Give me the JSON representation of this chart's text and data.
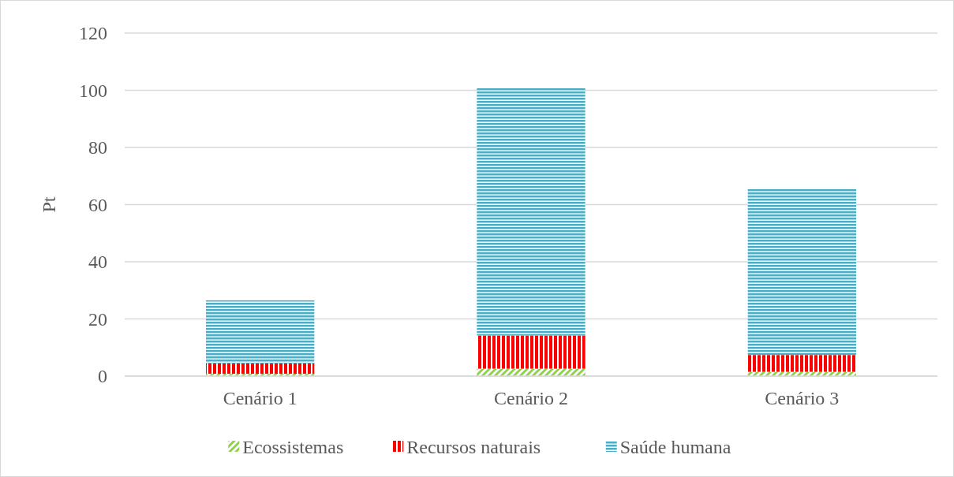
{
  "chart_data": {
    "type": "bar",
    "stacked": true,
    "ylabel": "Pt",
    "categories": [
      "Cenário 1",
      "Cenário 2",
      "Cenário 3"
    ],
    "series": [
      {
        "name": "Ecossistemas",
        "color": "#92d050",
        "values": [
          0.8,
          2.6,
          1.5
        ]
      },
      {
        "name": "Recursos naturais",
        "color": "#ff0000",
        "values": [
          3.7,
          11.6,
          5.9
        ]
      },
      {
        "name": "Saúde humana",
        "color": "#4bacc6",
        "values": [
          22,
          86.5,
          58.3
        ]
      }
    ],
    "ylim": [
      0,
      120
    ],
    "yticks": [
      0,
      20,
      40,
      60,
      80,
      100,
      120
    ],
    "grid": "y",
    "legend": "bottom"
  }
}
